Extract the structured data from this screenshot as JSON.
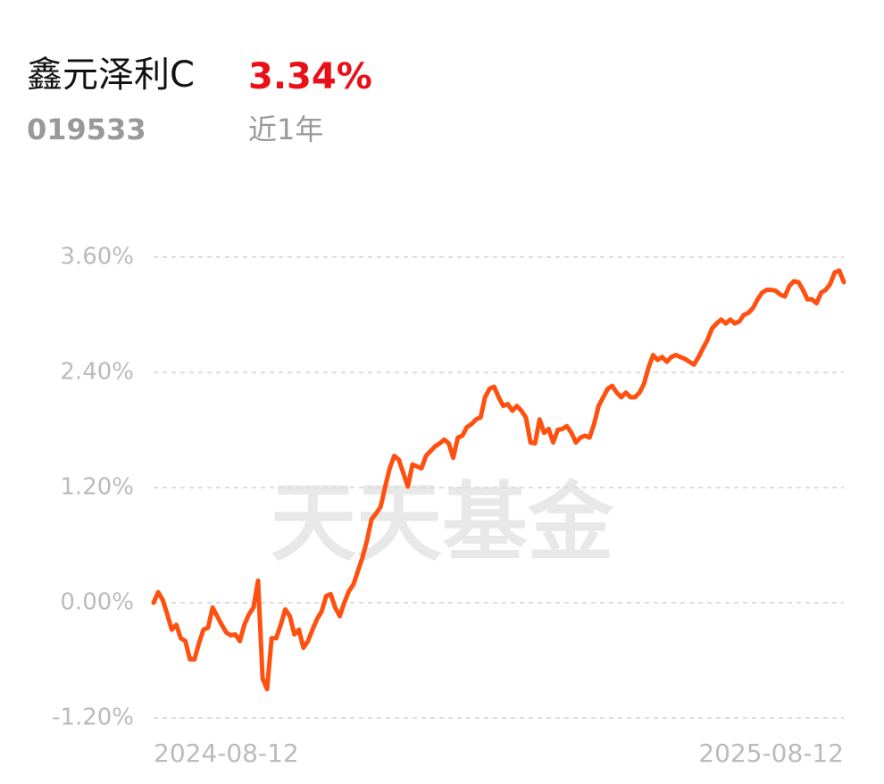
{
  "header": {
    "name": "鑫元泽利C",
    "return": "3.34%",
    "code": "019533",
    "period": "近1年"
  },
  "chart_data": {
    "type": "line",
    "watermark": "天天基金",
    "categories": [
      "2024-08-12",
      null,
      null,
      null,
      null,
      null,
      null,
      null,
      null,
      null,
      null,
      null,
      null,
      null,
      null,
      null,
      null,
      null,
      null,
      null,
      null,
      null,
      null,
      null,
      null,
      null,
      null,
      null,
      null,
      null,
      null,
      null,
      null,
      null,
      null,
      null,
      null,
      null,
      null,
      null,
      null,
      null,
      null,
      null,
      null,
      null,
      null,
      null,
      null,
      null,
      null,
      null,
      null,
      null,
      null,
      null,
      null,
      null,
      null,
      null,
      null,
      null,
      null,
      null,
      null,
      null,
      null,
      null,
      null,
      null,
      null,
      null,
      null,
      null,
      null,
      null,
      null,
      null,
      null,
      null,
      null,
      null,
      null,
      null,
      null,
      null,
      null,
      null,
      null,
      null,
      null,
      null,
      null,
      null,
      null,
      null,
      null,
      null,
      null,
      null,
      null,
      null,
      null,
      null,
      null,
      null,
      null,
      null,
      null,
      null,
      null,
      null,
      null,
      null,
      null,
      null,
      null,
      null,
      null,
      null,
      null,
      null,
      null,
      null,
      null,
      null,
      null,
      null,
      null,
      null,
      null,
      null,
      null,
      null,
      null,
      null,
      null,
      null,
      null,
      null,
      null,
      null,
      null,
      null,
      null,
      null,
      null,
      null,
      null,
      null,
      null,
      null,
      "2025-08-12"
    ],
    "series": [
      {
        "color": "#ff5010",
        "values": [
          0,
          0.11,
          0.03,
          -0.12,
          -0.28,
          -0.23,
          -0.37,
          -0.4,
          -0.59,
          -0.59,
          -0.42,
          -0.28,
          -0.26,
          -0.05,
          -0.14,
          -0.23,
          -0.31,
          -0.34,
          -0.33,
          -0.4,
          -0.23,
          -0.12,
          -0.05,
          0.23,
          -0.79,
          -0.9,
          -0.37,
          -0.37,
          -0.23,
          -0.07,
          -0.14,
          -0.33,
          -0.28,
          -0.47,
          -0.4,
          -0.28,
          -0.17,
          -0.09,
          0.07,
          0.09,
          -0.05,
          -0.14,
          0,
          0.12,
          0.19,
          0.33,
          0.47,
          0.65,
          0.87,
          0.93,
          1.0,
          1.21,
          1.4,
          1.53,
          1.49,
          1.35,
          1.21,
          1.44,
          1.42,
          1.4,
          1.53,
          1.58,
          1.63,
          1.66,
          1.7,
          1.66,
          1.51,
          1.72,
          1.74,
          1.83,
          1.86,
          1.91,
          1.93,
          2.14,
          2.23,
          2.25,
          2.14,
          2.05,
          2.07,
          2.0,
          2.05,
          2.0,
          1.93,
          1.67,
          1.66,
          1.91,
          1.77,
          1.81,
          1.67,
          1.8,
          1.81,
          1.84,
          1.77,
          1.67,
          1.72,
          1.74,
          1.72,
          1.86,
          2.05,
          2.14,
          2.23,
          2.26,
          2.19,
          2.14,
          2.19,
          2.14,
          2.14,
          2.19,
          2.28,
          2.45,
          2.58,
          2.53,
          2.56,
          2.51,
          2.56,
          2.58,
          2.56,
          2.54,
          2.51,
          2.48,
          2.56,
          2.65,
          2.74,
          2.86,
          2.91,
          2.95,
          2.91,
          2.95,
          2.91,
          2.93,
          3.0,
          3.02,
          3.07,
          3.16,
          3.23,
          3.26,
          3.26,
          3.25,
          3.21,
          3.19,
          3.3,
          3.35,
          3.34,
          3.26,
          3.16,
          3.16,
          3.12,
          3.23,
          3.26,
          3.32,
          3.44,
          3.46,
          3.34
        ]
      }
    ],
    "ylim": [
      -1.2,
      3.6
    ],
    "yticks": [
      {
        "value": 3.6,
        "label": "3.60%"
      },
      {
        "value": 2.4,
        "label": "2.40%"
      },
      {
        "value": 1.2,
        "label": "1.20%"
      },
      {
        "value": 0,
        "label": "0.00%"
      },
      {
        "value": -1.2,
        "label": "-1.20%"
      }
    ],
    "grid": true
  }
}
